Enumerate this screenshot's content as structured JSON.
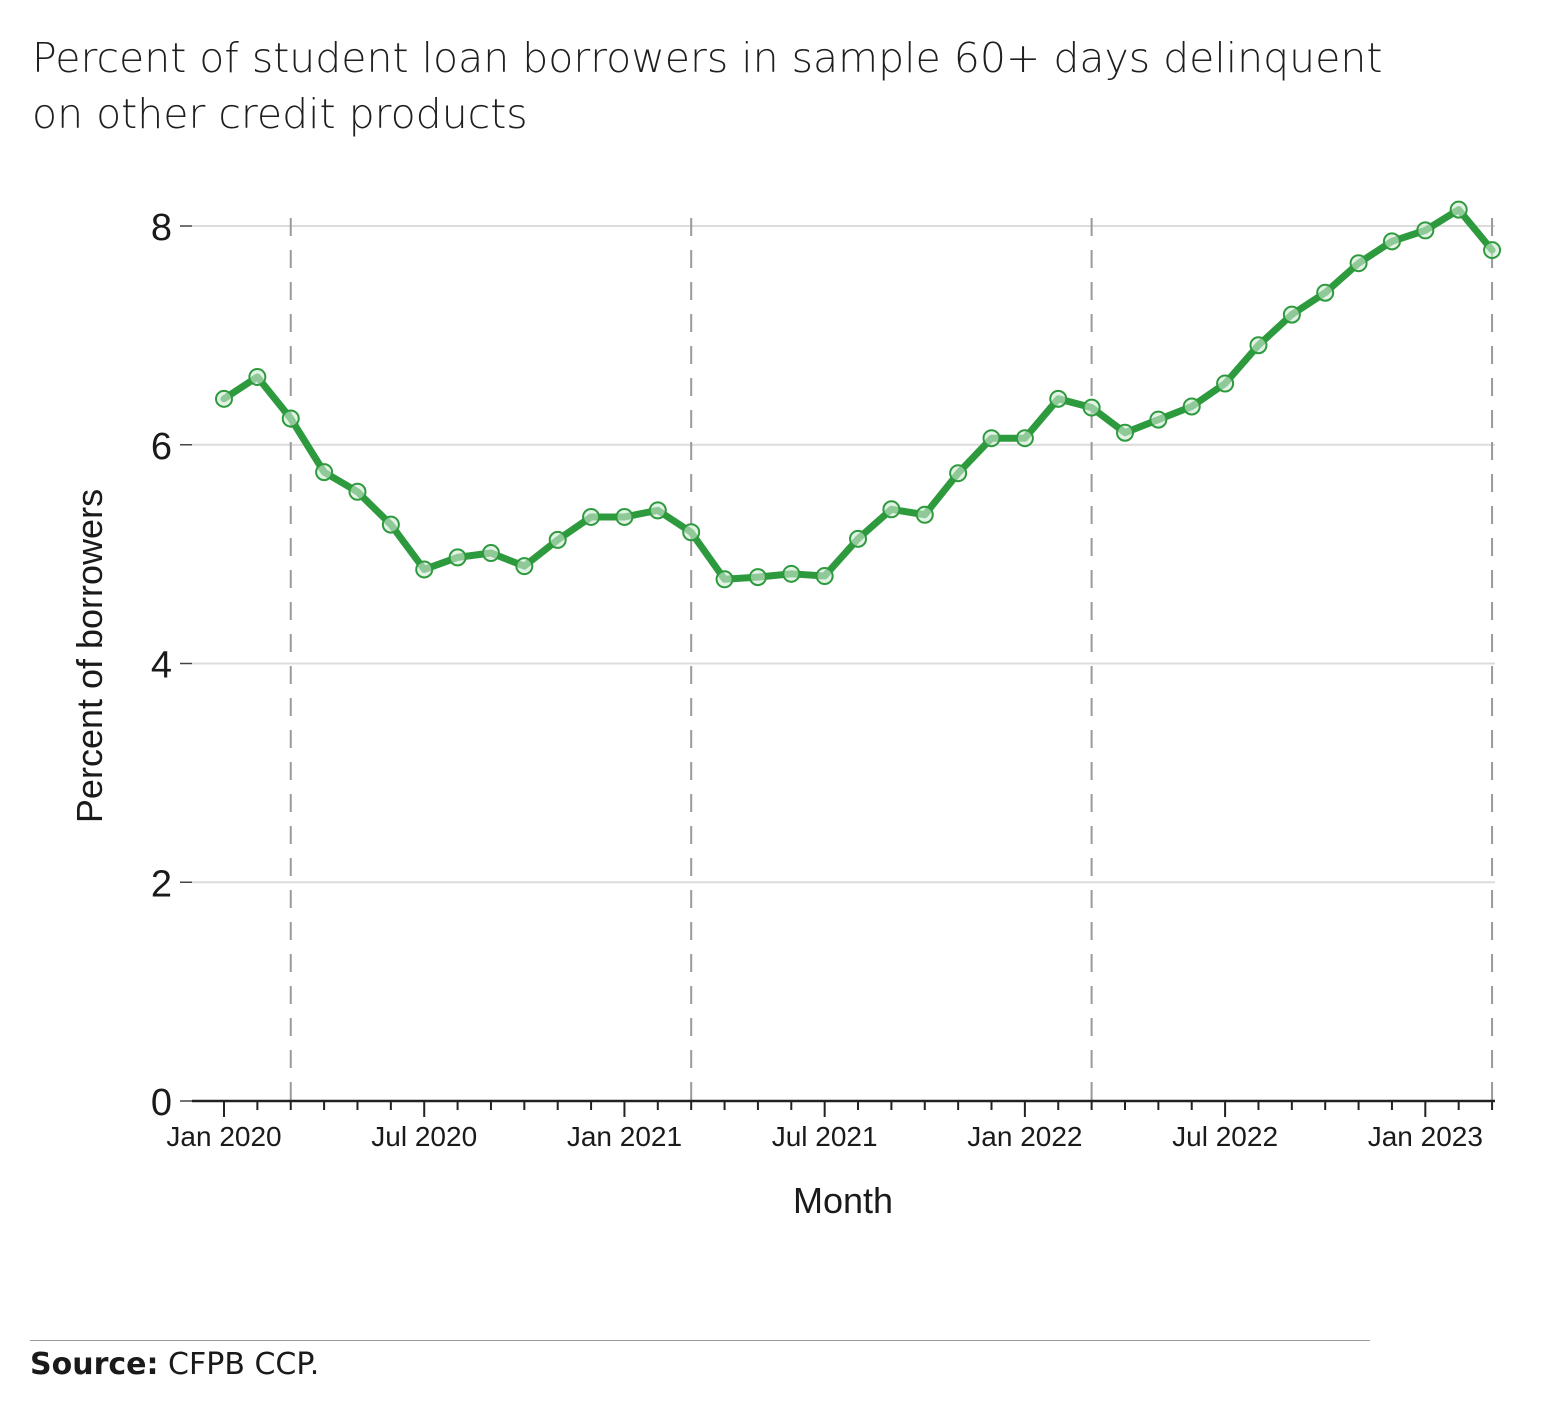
{
  "title": "Percent of student loan borrowers in sample 60+ days delinquent on other credit products",
  "source_label": "Source:",
  "source_text": "CFPB CCP.",
  "colors": {
    "line": "#2e9a3e",
    "marker_fill": "#cfe9d3",
    "grid": "#dcdcdc",
    "vline": "#9a9a9a"
  },
  "chart_data": {
    "type": "line",
    "title": "Percent of student loan borrowers in sample 60+ days delinquent on other credit products",
    "xlabel": "Month",
    "ylabel": "Percent of borrowers",
    "ylim": [
      0,
      8
    ],
    "yticks": [
      0,
      2,
      4,
      6,
      8
    ],
    "xlim": [
      "2020-01",
      "2023-03"
    ],
    "xticks": [
      "Jan 2020",
      "Jul 2020",
      "Jan 2021",
      "Jul 2021",
      "Jan 2022",
      "Jul 2022",
      "Jan 2023"
    ],
    "grid": "horizontal",
    "reference_lines": [
      "2020-03",
      "2021-03",
      "2022-03",
      "2023-03"
    ],
    "x": [
      "2020-01",
      "2020-02",
      "2020-03",
      "2020-04",
      "2020-05",
      "2020-06",
      "2020-07",
      "2020-08",
      "2020-09",
      "2020-10",
      "2020-11",
      "2020-12",
      "2021-01",
      "2021-02",
      "2021-03",
      "2021-04",
      "2021-05",
      "2021-06",
      "2021-07",
      "2021-08",
      "2021-09",
      "2021-10",
      "2021-11",
      "2021-12",
      "2022-01",
      "2022-02",
      "2022-03",
      "2022-04",
      "2022-05",
      "2022-06",
      "2022-07",
      "2022-08",
      "2022-09",
      "2022-10",
      "2022-11",
      "2022-12",
      "2023-01",
      "2023-02",
      "2023-03"
    ],
    "series": [
      {
        "values": [
          6.42,
          6.62,
          6.24,
          5.75,
          5.57,
          5.27,
          4.86,
          4.97,
          5.01,
          4.89,
          5.13,
          5.34,
          5.34,
          5.4,
          5.2,
          4.77,
          4.79,
          4.82,
          4.8,
          5.14,
          5.41,
          5.36,
          5.74,
          6.06,
          6.06,
          6.42,
          6.34,
          6.11,
          6.23,
          6.35,
          6.56,
          6.91,
          7.19,
          7.39,
          7.66,
          7.86,
          7.96,
          8.15,
          7.78
        ]
      }
    ]
  }
}
